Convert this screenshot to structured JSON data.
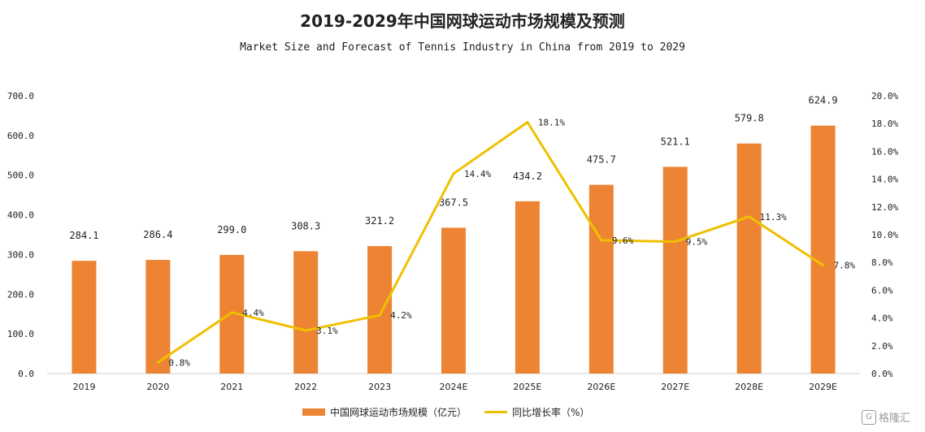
{
  "chart_data": {
    "type": "bar+line",
    "title": "2019-2029年中国网球运动市场规模及预测",
    "subtitle": "Market Size and Forecast of Tennis Industry in China from 2019 to 2029",
    "categories": [
      "2019",
      "2020",
      "2021",
      "2022",
      "2023",
      "2024E",
      "2025E",
      "2026E",
      "2027E",
      "2028E",
      "2029E"
    ],
    "series": [
      {
        "name": "中国网球运动市场规模（亿元）",
        "type": "bar",
        "axis": "left",
        "color": "#ED8433",
        "values": [
          284.1,
          286.4,
          299.0,
          308.3,
          321.2,
          367.5,
          434.2,
          475.7,
          521.1,
          579.8,
          624.9
        ],
        "labels": [
          "284.1",
          "286.4",
          "299.0",
          "308.3",
          "321.2",
          "367.5",
          "434.2",
          "475.7",
          "521.1",
          "579.8",
          "624.9"
        ]
      },
      {
        "name": "同比增长率（%）",
        "type": "line",
        "axis": "right",
        "color": "#F0C000",
        "values": [
          null,
          0.8,
          4.4,
          3.1,
          4.2,
          14.4,
          18.1,
          9.6,
          9.5,
          11.3,
          7.8
        ],
        "labels": [
          null,
          "0.8%",
          "4.4%",
          "3.1%",
          "4.2%",
          "14.4%",
          "18.1%",
          "9.6%",
          "9.5%",
          "11.3%",
          "7.8%"
        ]
      }
    ],
    "y_left": {
      "ylim": [
        0,
        700
      ],
      "ticks": [
        0,
        100,
        200,
        300,
        400,
        500,
        600,
        700
      ],
      "tick_labels": [
        "0.0",
        "100.0",
        "200.0",
        "300.0",
        "400.0",
        "500.0",
        "600.0",
        "700.0"
      ]
    },
    "y_right": {
      "ylim": [
        0,
        20
      ],
      "ticks": [
        0,
        2,
        4,
        6,
        8,
        10,
        12,
        14,
        16,
        18,
        20
      ],
      "tick_labels": [
        "0.0%",
        "2.0%",
        "4.0%",
        "6.0%",
        "8.0%",
        "10.0%",
        "12.0%",
        "14.0%",
        "16.0%",
        "18.0%",
        "20.0%"
      ]
    },
    "legend_position": "bottom",
    "grid": false
  },
  "legend": {
    "bar_label": "中国网球运动市场规模（亿元）",
    "line_label": "同比增长率（%）"
  },
  "watermark": {
    "icon_text": "G",
    "text": "格隆汇"
  }
}
